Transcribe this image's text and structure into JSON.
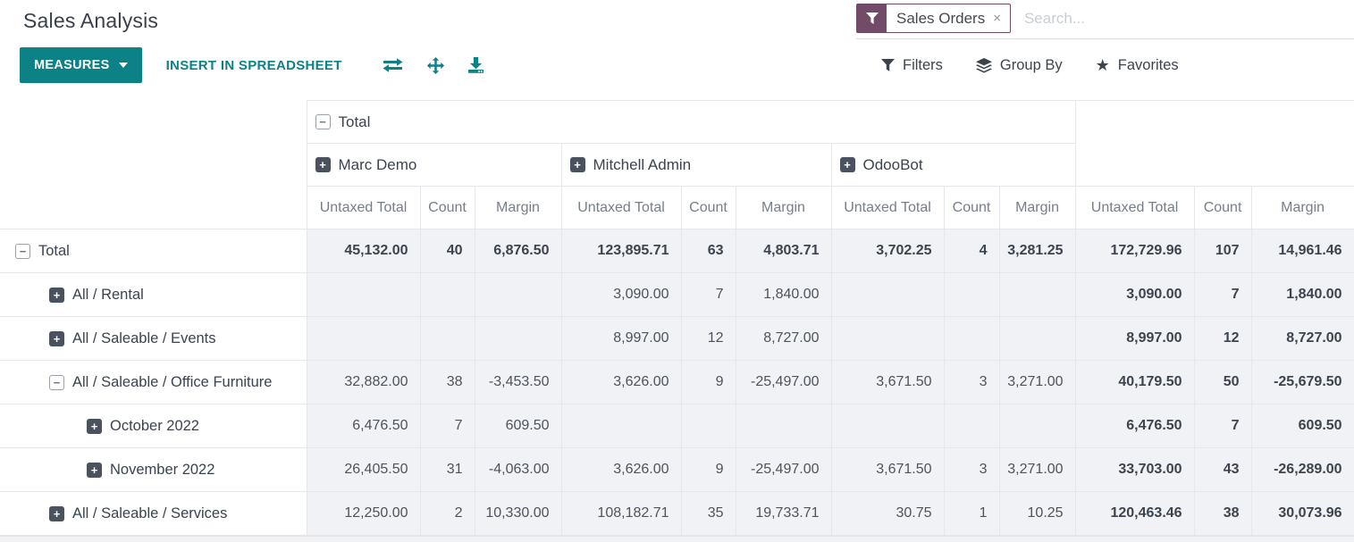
{
  "title": "Sales Analysis",
  "search": {
    "facet_label": "Sales Orders",
    "facet_remove": "×",
    "placeholder": "Search..."
  },
  "toolbar": {
    "measures": "MEASURES",
    "insert_in_spreadsheet": "INSERT IN SPREADSHEET",
    "filters": "Filters",
    "group_by": "Group By",
    "favorites": "Favorites",
    "favorites_star": "★"
  },
  "pivot": {
    "expand_glyph": "+",
    "collapse_glyph": "−",
    "col_root": {
      "label": "Total",
      "icon": "minus"
    },
    "col_groups": [
      {
        "label": "Marc Demo",
        "icon": "plus"
      },
      {
        "label": "Mitchell Admin",
        "icon": "plus"
      },
      {
        "label": "OdooBot",
        "icon": "plus"
      }
    ],
    "measures": [
      "Untaxed Total",
      "Count",
      "Margin"
    ],
    "rows": [
      {
        "label": "Total",
        "indent": 0,
        "icon": "minus",
        "bold": true,
        "cells": [
          "45,132.00",
          "40",
          "6,876.50",
          "123,895.71",
          "63",
          "4,803.71",
          "3,702.25",
          "4",
          "3,281.25",
          "172,729.96",
          "107",
          "14,961.46"
        ]
      },
      {
        "label": "All / Rental",
        "indent": 1,
        "icon": "plus",
        "bold": false,
        "cells": [
          "",
          "",
          "",
          "3,090.00",
          "7",
          "1,840.00",
          "",
          "",
          "",
          "3,090.00",
          "7",
          "1,840.00"
        ]
      },
      {
        "label": "All / Saleable / Events",
        "indent": 1,
        "icon": "plus",
        "bold": false,
        "cells": [
          "",
          "",
          "",
          "8,997.00",
          "12",
          "8,727.00",
          "",
          "",
          "",
          "8,997.00",
          "12",
          "8,727.00"
        ]
      },
      {
        "label": "All / Saleable / Office Furniture",
        "indent": 1,
        "icon": "minus",
        "bold": false,
        "cells": [
          "32,882.00",
          "38",
          "-3,453.50",
          "3,626.00",
          "9",
          "-25,497.00",
          "3,671.50",
          "3",
          "3,271.00",
          "40,179.50",
          "50",
          "-25,679.50"
        ]
      },
      {
        "label": "October 2022",
        "indent": 2,
        "icon": "plus",
        "bold": false,
        "cells": [
          "6,476.50",
          "7",
          "609.50",
          "",
          "",
          "",
          "",
          "",
          "",
          "6,476.50",
          "7",
          "609.50"
        ]
      },
      {
        "label": "November 2022",
        "indent": 2,
        "icon": "plus",
        "bold": false,
        "cells": [
          "26,405.50",
          "31",
          "-4,063.00",
          "3,626.00",
          "9",
          "-25,497.00",
          "3,671.50",
          "3",
          "3,271.00",
          "33,703.00",
          "43",
          "-26,289.00"
        ]
      },
      {
        "label": "All / Saleable / Services",
        "indent": 1,
        "icon": "plus",
        "bold": false,
        "cells": [
          "12,250.00",
          "2",
          "10,330.00",
          "108,182.71",
          "35",
          "19,733.71",
          "30.75",
          "1",
          "10.25",
          "120,463.46",
          "38",
          "30,073.96"
        ]
      }
    ]
  },
  "colors": {
    "accent_teal": "#0c8186",
    "brand_purple": "#714B67",
    "text_dark": "#3b4350",
    "text_muted": "#767e89",
    "cell_bg": "#f1f2f6",
    "border": "#e5e7ec"
  }
}
